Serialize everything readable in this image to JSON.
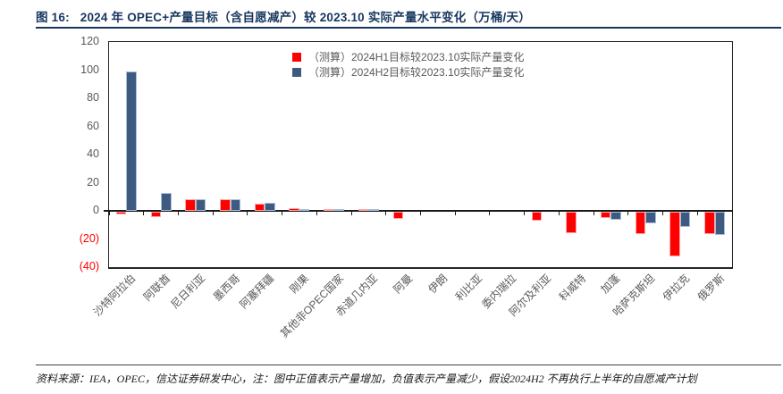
{
  "page": {
    "title_prefix": "图 16:",
    "title": "2024 年 OPEC+产量目标（含自愿减产）较 2023.10 实际产量水平变化（万桶/天）",
    "footnote": "资料来源：IEA，OPEC，信达证券研发中心，注：图中正值表示产量增加，负值表示产量减少，假设2024H2 不再执行上半年的自愿减产计划"
  },
  "colors": {
    "title": "#17375E",
    "axis_line": "#1A1A1A",
    "axis_text": "#595959",
    "negative_label": "#FF0000",
    "series_h1": "#FF0000",
    "series_h1_border": "#FFA8A8",
    "series_h2": "#3E5A80",
    "series_h2_border": "#A7BFDE"
  },
  "chart_data": {
    "type": "bar",
    "title": "2024 年 OPEC+产量目标（含自愿减产）较 2023.10 实际产量水平变化（万桶/天）",
    "unit": "万桶/天",
    "categories": [
      "沙特阿拉伯",
      "阿联酋",
      "尼日利亚",
      "墨西哥",
      "阿塞拜疆",
      "刚果",
      "其他非OPEC国家",
      "赤道几内亚",
      "阿曼",
      "伊朗",
      "利比亚",
      "委内瑞拉",
      "阿尔及利亚",
      "科威特",
      "加蓬",
      "哈萨克斯坦",
      "伊拉克",
      "俄罗斯"
    ],
    "series": [
      {
        "key": "h1",
        "name": "（测算）2024H1目标较2023.10实际产量变化",
        "color": "#FF0000",
        "border": "#FFA8A8",
        "values": [
          -2,
          -4,
          8,
          8.5,
          5,
          2,
          1.5,
          1.5,
          -5,
          0,
          0,
          0,
          -6.5,
          -15,
          -4.5,
          -16,
          -32,
          -16
        ]
      },
      {
        "key": "h2",
        "name": "（测算）2024H2目标较2023.10实际产量变化",
        "color": "#3E5A80",
        "border": "#A7BFDE",
        "values": [
          99,
          13,
          8,
          8.5,
          5.5,
          1.5,
          1,
          1,
          0,
          0,
          0,
          0,
          0,
          0,
          -6,
          -8.5,
          -11,
          -16.5
        ]
      }
    ],
    "ylim": [
      -40,
      120
    ],
    "yticks": [
      120,
      100,
      80,
      60,
      40,
      20,
      0,
      -20,
      -40
    ],
    "ytick_labels": [
      "120",
      "100",
      "80",
      "60",
      "40",
      "20",
      "0",
      "(20)",
      "(40)"
    ],
    "legend_position": "top-center-inside",
    "grid": false
  }
}
